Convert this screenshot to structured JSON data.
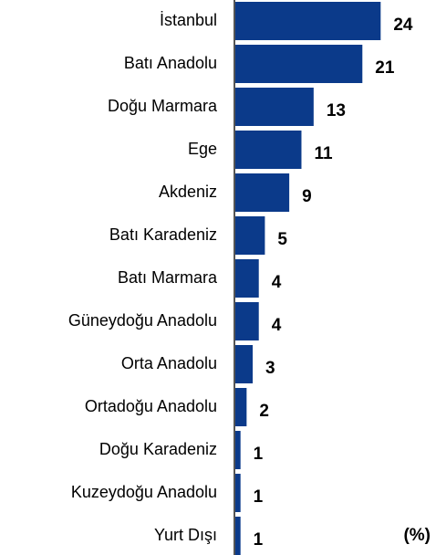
{
  "chart_data": {
    "type": "barh",
    "categories": [
      "İstanbul",
      "Batı Anadolu",
      "Doğu Marmara",
      "Ege",
      "Akdeniz",
      "Batı Karadeniz",
      "Batı Marmara",
      "Güneydoğu Anadolu",
      "Orta Anadolu",
      "Ortadoğu Anadolu",
      "Doğu Karadeniz",
      "Kuzeydoğu Anadolu",
      "Yurt Dışı"
    ],
    "values": [
      24,
      21,
      13,
      11,
      9,
      5,
      4,
      4,
      3,
      2,
      1,
      1,
      1
    ],
    "color": "#0b3a8a",
    "xlim": [
      0,
      25
    ],
    "annotation": "(%)"
  }
}
